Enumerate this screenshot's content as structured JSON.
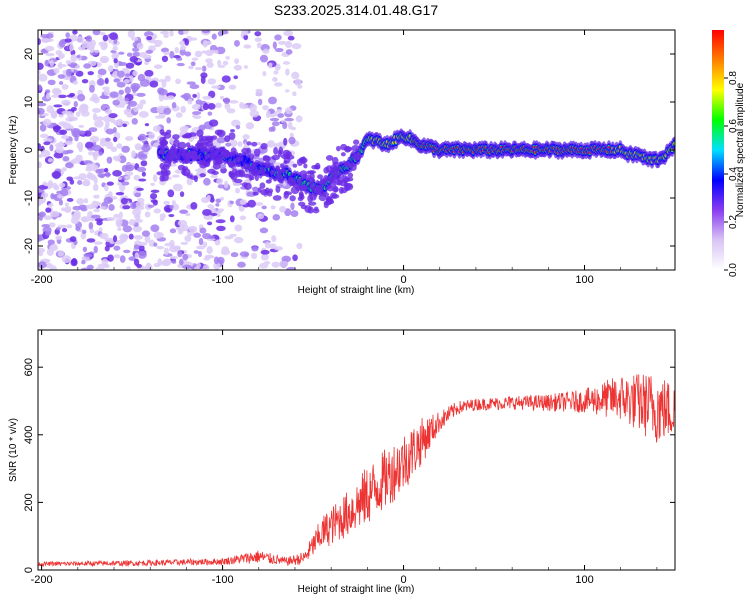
{
  "title": "S233.2025.314.01.48.G17",
  "chart_data": [
    {
      "type": "heatmap",
      "name": "spectrogram",
      "xlabel": "Height of straight line (km)",
      "ylabel": "Frequency (Hz)",
      "xlim": [
        -202,
        150
      ],
      "ylim": [
        -25,
        25
      ],
      "xticks": [
        -200,
        -100,
        0,
        100
      ],
      "xtick_labels": [
        "-200",
        "-100",
        "0",
        "100"
      ],
      "yticks": [
        -20,
        -10,
        0,
        10,
        20
      ],
      "ytick_labels": [
        "-20",
        "-10",
        "0",
        "10",
        "20"
      ],
      "ridge": {
        "description": "dominant frequency track (Hz) vs height (km)",
        "x": [
          -120,
          -110,
          -100,
          -95,
          -90,
          -85,
          -80,
          -75,
          -70,
          -65,
          -60,
          -55,
          -50,
          -45,
          -40,
          -35,
          -30,
          -25,
          -22,
          -20,
          -15,
          -10,
          -5,
          0,
          5,
          10,
          20,
          40,
          60,
          80,
          100,
          115,
          120,
          125,
          130,
          135,
          140,
          145,
          150
        ],
        "y": [
          -1,
          -1,
          -1,
          -2,
          -2,
          -3,
          -4,
          -4,
          -5,
          -5,
          -6,
          -7,
          -8,
          -8,
          -6,
          -4,
          -3,
          -1,
          1,
          2,
          2,
          1,
          2,
          3,
          2,
          1,
          0,
          0,
          0,
          0,
          0,
          0,
          0,
          -1,
          -1,
          -2,
          -2,
          -1,
          1
        ]
      },
      "colorbar": {
        "label": "Normalized spectral amplitude",
        "range": [
          0,
          1
        ],
        "ticks": [
          0,
          0.2,
          0.4,
          0.6,
          0.8
        ],
        "tick_labels": [
          "0.0",
          "0.2",
          "0.4",
          "0.6",
          "0.8"
        ],
        "colormap": [
          "#ffffff",
          "#d9c4f5",
          "#8a3cf0",
          "#0000ff",
          "#00e0ff",
          "#00ff00",
          "#ffff00",
          "#ff8000",
          "#ff0000"
        ]
      }
    },
    {
      "type": "line",
      "name": "snr",
      "xlabel": "Height of straight line (km)",
      "ylabel": "SNR (10 * v/v)",
      "xlim": [
        -202,
        150
      ],
      "ylim": [
        0,
        710
      ],
      "xticks": [
        -200,
        -100,
        0,
        100
      ],
      "xtick_labels": [
        "-200",
        "-100",
        "0",
        "100"
      ],
      "yticks": [
        0,
        200,
        400,
        600
      ],
      "ytick_labels": [
        "0",
        "200",
        "400",
        "600"
      ],
      "color": "#ee3333",
      "envelope": {
        "description": "approximate SNR trend vs height (mean value, noise amplitude)",
        "x": [
          -202,
          -150,
          -100,
          -80,
          -65,
          -55,
          -45,
          -30,
          -20,
          -10,
          0,
          10,
          20,
          30,
          40,
          60,
          80,
          100,
          120,
          140,
          150
        ],
        "mean": [
          18,
          20,
          25,
          40,
          25,
          35,
          110,
          170,
          220,
          270,
          320,
          380,
          440,
          480,
          490,
          495,
          495,
          500,
          510,
          480,
          470
        ],
        "noise": [
          6,
          8,
          10,
          20,
          12,
          20,
          50,
          70,
          90,
          90,
          90,
          70,
          30,
          20,
          18,
          20,
          25,
          35,
          70,
          110,
          80
        ]
      }
    }
  ]
}
